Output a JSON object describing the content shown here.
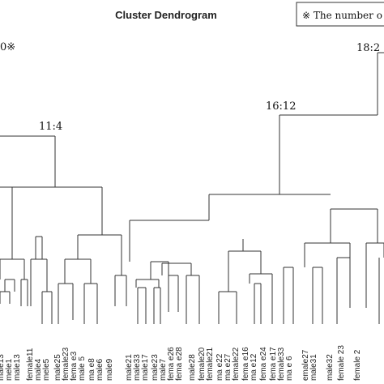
{
  "title": "Cluster Dendrogram",
  "note": "※ The number o",
  "corner_mark": "0※",
  "node_labels": {
    "root": "18:2",
    "right": "16:12",
    "left": "11:4"
  },
  "leaves": [
    "male13",
    "mele1",
    "male13",
    "female11",
    "male4",
    "mele5",
    "male25",
    "female23",
    "fema e3",
    "male 5",
    "ma e8",
    "male6",
    "male9",
    "male21",
    "male33",
    "male17",
    "male23",
    "male7",
    "fema e26",
    "fema e28",
    "male28",
    "female20",
    "female21",
    "ma e22",
    "ma e27",
    "female22",
    "fema e16",
    "ma e12",
    "fema e24",
    "fema e17",
    "female33",
    "ma e 6",
    "emale27",
    "male31",
    "male32",
    "female 23",
    "female 2"
  ]
}
